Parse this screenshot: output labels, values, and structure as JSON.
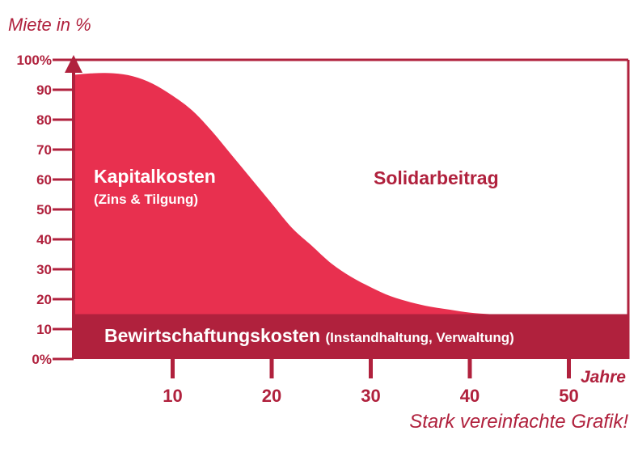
{
  "chart_data": {
    "type": "area",
    "ylabel": "Miete in %",
    "xlabel": "Jahre",
    "note": "Stark vereinfachte Grafik!",
    "ylim": [
      0,
      100
    ],
    "xlim": [
      0,
      56
    ],
    "y_ticks": [
      "0%",
      "10",
      "20",
      "30",
      "40",
      "50",
      "60",
      "70",
      "80",
      "90",
      "100%"
    ],
    "y_tick_values": [
      0,
      10,
      20,
      30,
      40,
      50,
      60,
      70,
      80,
      90,
      100
    ],
    "x_ticks": [
      "10",
      "20",
      "30",
      "40",
      "50"
    ],
    "x_tick_values": [
      10,
      20,
      30,
      40,
      50
    ],
    "series": [
      {
        "name": "Bewirtschaftungskosten",
        "note": "(Instandhaltung, Verwaltung)",
        "color": "#b0213d",
        "x": [
          0,
          56
        ],
        "y": [
          15,
          15
        ]
      },
      {
        "name": "Kapitalkosten",
        "note": "(Zins & Tilgung)",
        "color": "#e8304f",
        "x": [
          0,
          2,
          4,
          6,
          8,
          10,
          12,
          14,
          16,
          18,
          20,
          22,
          24,
          26,
          28,
          30,
          32,
          34,
          36,
          38,
          40,
          42,
          44,
          56
        ],
        "y": [
          95,
          95.5,
          95.5,
          94.5,
          92,
          88,
          83,
          76,
          68,
          60,
          52,
          44,
          38,
          32,
          27.5,
          24,
          21,
          19,
          17.5,
          16.5,
          15.5,
          15,
          15,
          15
        ]
      },
      {
        "name": "Solidarbeitrag",
        "color": "#ffffff"
      }
    ],
    "colors": {
      "axis": "#b0213d",
      "capital": "#e8304f",
      "management": "#b0213d",
      "text_dark": "#b0213d"
    }
  }
}
